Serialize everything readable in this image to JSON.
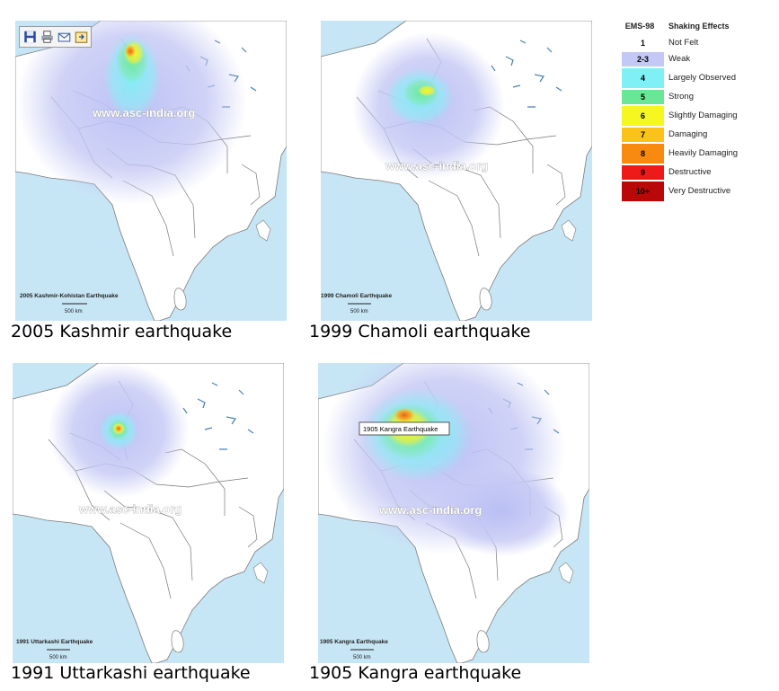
{
  "panels": [
    {
      "map_title": "2005 Kashmir-Kohistan Earthquake",
      "scale": "500 km",
      "watermark": "www.asc-india.org",
      "caption": "2005 Kashmir earthquake"
    },
    {
      "map_title": "1999 Chamoli Earthquake",
      "scale": "500 km",
      "watermark": "www.asc-india.org",
      "caption": "1999 Chamoli earthquake"
    },
    {
      "map_title": "1991 Uttarkashi Earthquake",
      "scale": "500 km",
      "watermark": "www.asc-india.org",
      "caption": "1991 Uttarkashi earthquake"
    },
    {
      "map_title": "1905 Kangra Earthquake",
      "scale": "500 km",
      "watermark": "www.asc-india.org",
      "caption": "1905 Kangra earthquake",
      "popup": "1905 Kangra Earthquake"
    }
  ],
  "toolbar": {
    "icons": [
      "save-icon",
      "print-icon",
      "email-icon",
      "export-icon"
    ]
  },
  "legend": {
    "header_scale": "EMS-98",
    "header_effects": "Shaking Effects",
    "rows": [
      {
        "level": "1",
        "label": "Not Felt",
        "color": "#ffffff"
      },
      {
        "level": "2-3",
        "label": "Weak",
        "color": "#c4c8f4"
      },
      {
        "level": "4",
        "label": "Largely Observed",
        "color": "#7ef0f6"
      },
      {
        "level": "5",
        "label": "Strong",
        "color": "#6ae796"
      },
      {
        "level": "6",
        "label": "Slightly Damaging",
        "color": "#f6f620"
      },
      {
        "level": "7",
        "label": "Damaging",
        "color": "#fbc21a"
      },
      {
        "level": "8",
        "label": "Heavily Damaging",
        "color": "#f98a10"
      },
      {
        "level": "9",
        "label": "Destructive",
        "color": "#ee1a1a"
      },
      {
        "level": "10+",
        "label": "Very Destructive",
        "color": "#b80808"
      }
    ]
  },
  "colors": {
    "sea": "#c7e6f5",
    "land": "#ffffff",
    "border": "#6f6f6f"
  }
}
